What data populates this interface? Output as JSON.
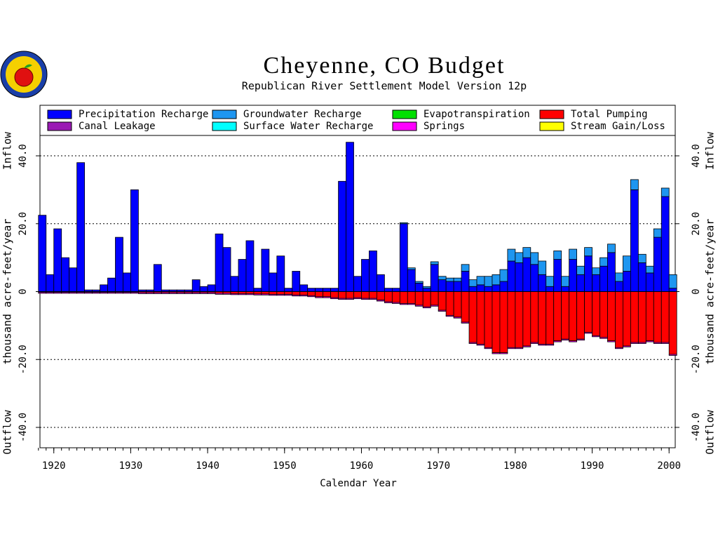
{
  "chart_data": {
    "type": "stacked-bar",
    "title": "Cheyenne, CO Budget",
    "subtitle": "Republican River Settlement Model Version 12p",
    "x_label": "Calendar Year",
    "y_axis_labels": [
      "Inflow",
      "thousand acre-feet/year",
      "Outflow"
    ],
    "x": [
      1918,
      1919,
      1920,
      1921,
      1922,
      1923,
      1924,
      1925,
      1926,
      1927,
      1928,
      1929,
      1930,
      1931,
      1932,
      1933,
      1934,
      1935,
      1936,
      1937,
      1938,
      1939,
      1940,
      1941,
      1942,
      1943,
      1944,
      1945,
      1946,
      1947,
      1948,
      1949,
      1950,
      1951,
      1952,
      1953,
      1954,
      1955,
      1956,
      1957,
      1958,
      1959,
      1960,
      1961,
      1962,
      1963,
      1964,
      1965,
      1966,
      1967,
      1968,
      1969,
      1970,
      1971,
      1972,
      1973,
      1974,
      1975,
      1976,
      1977,
      1978,
      1979,
      1980,
      1981,
      1982,
      1983,
      1984,
      1985,
      1986,
      1987,
      1988,
      1989,
      1990,
      1991,
      1992,
      1993,
      1994,
      1995,
      1996,
      1997,
      1998,
      1999,
      2000
    ],
    "xlim": [
      1918.2,
      2000.8
    ],
    "xticks": [
      1920,
      1930,
      1940,
      1950,
      1960,
      1970,
      1980,
      1990,
      2000
    ],
    "ylim": [
      -46,
      46
    ],
    "yticks": [
      {
        "value": -40,
        "label": "-40.0"
      },
      {
        "value": -20,
        "label": "-20.0"
      },
      0,
      {
        "value": 20,
        "label": "20.0"
      },
      {
        "value": 40,
        "label": "40.0"
      }
    ],
    "grid": true,
    "series": [
      {
        "name": "Precipitation Recharge",
        "color": "#0000ff",
        "values": [
          22.5,
          5,
          18.5,
          10,
          7,
          38,
          0.5,
          0.5,
          2,
          4,
          16,
          5.5,
          30,
          0.5,
          0.5,
          8,
          0.5,
          0.5,
          0.5,
          0.5,
          3.5,
          1.5,
          2,
          17,
          13,
          4.5,
          9.5,
          15,
          1,
          12.5,
          5.5,
          10.5,
          1,
          6,
          2,
          1,
          1,
          1,
          1,
          32.5,
          44,
          4.5,
          9.5,
          12,
          5,
          1,
          1,
          20,
          6.5,
          2.5,
          1,
          8,
          3.5,
          3,
          3,
          6,
          1.5,
          2,
          1.5,
          2,
          3,
          9,
          8.5,
          10,
          8,
          5,
          1.5,
          9.5,
          1.5,
          9.5,
          5,
          10.5,
          5,
          7.5,
          11.5,
          3,
          6,
          30,
          8.5,
          5.5,
          16,
          28,
          1
        ]
      },
      {
        "name": "Groundwater Recharge",
        "color": "#1e96f0",
        "values": [
          0,
          0,
          0,
          0,
          0,
          0,
          0,
          0,
          0,
          0,
          0,
          0,
          0,
          0,
          0,
          0,
          0,
          0,
          0,
          0,
          0,
          0,
          0,
          0,
          0,
          0,
          0,
          0,
          0,
          0,
          0,
          0,
          0,
          0,
          0,
          0,
          0,
          0,
          0,
          0,
          0,
          0,
          0,
          0,
          0,
          0,
          0,
          0.3,
          0.5,
          0.5,
          0.5,
          0.8,
          1,
          1,
          1,
          2,
          2,
          2.5,
          3,
          3,
          3.5,
          3.5,
          3,
          3,
          3.5,
          4,
          3,
          2.5,
          3,
          3,
          2.5,
          2.5,
          2,
          2.5,
          2.5,
          2.5,
          4.5,
          3,
          2.5,
          2,
          2.5,
          2.5,
          4
        ]
      },
      {
        "name": "Evapotranspiration",
        "color": "#00e000",
        "values": [
          0,
          0,
          0,
          0,
          0,
          0,
          0,
          0,
          0,
          0,
          0,
          0,
          0,
          0,
          0,
          0,
          0,
          0,
          0,
          0,
          0,
          0,
          0,
          0,
          0,
          0,
          0,
          0,
          0,
          0,
          0,
          0,
          0,
          0,
          0,
          0,
          0,
          0,
          0,
          0,
          0,
          0,
          0,
          0,
          0,
          0,
          0,
          0,
          0,
          0,
          0,
          0,
          0,
          0,
          0,
          0,
          0,
          0,
          0,
          0,
          0,
          0,
          0,
          0,
          0,
          0,
          0,
          0,
          0,
          0,
          0,
          0,
          0,
          0,
          0,
          0,
          0,
          0,
          0,
          0,
          0,
          0,
          0
        ]
      },
      {
        "name": "Total Pumping",
        "color": "#ff0000",
        "values": [
          -0.2,
          -0.2,
          -0.2,
          -0.2,
          -0.2,
          -0.2,
          -0.2,
          -0.2,
          -0.2,
          -0.2,
          -0.2,
          -0.2,
          -0.2,
          -0.3,
          -0.3,
          -0.3,
          -0.3,
          -0.3,
          -0.3,
          -0.3,
          -0.3,
          -0.3,
          -0.3,
          -0.5,
          -0.5,
          -0.6,
          -0.6,
          -0.6,
          -0.7,
          -0.7,
          -0.8,
          -0.8,
          -0.8,
          -1,
          -1,
          -1.2,
          -1.5,
          -1.5,
          -1.8,
          -2,
          -2,
          -1.8,
          -2,
          -2,
          -2.5,
          -3,
          -3.2,
          -3.5,
          -3.5,
          -4,
          -4.5,
          -4,
          -5.5,
          -7,
          -7.5,
          -9,
          -15,
          -15.5,
          -16.5,
          -18,
          -18,
          -16.5,
          -16.5,
          -16,
          -15,
          -15.5,
          -15.5,
          -14.5,
          -14,
          -14.5,
          -14,
          -12,
          -13,
          -13.5,
          -14.5,
          -16.5,
          -16,
          -15,
          -15,
          -14.5,
          -15,
          -15,
          -18.5
        ]
      },
      {
        "name": "Canal Leakage",
        "color": "#9a1ab4",
        "values": [
          0,
          0,
          0,
          0,
          0,
          0,
          0,
          0,
          0,
          0,
          0,
          0,
          0,
          0,
          0,
          0,
          0,
          0,
          0,
          0,
          0,
          0,
          0,
          0,
          0,
          0,
          0,
          0,
          0,
          0,
          0,
          0,
          0,
          0,
          0,
          0,
          0,
          0,
          0,
          0,
          0,
          0,
          0,
          0,
          0,
          0,
          0,
          0,
          0,
          0,
          0,
          0,
          0,
          0,
          0,
          0,
          0,
          0,
          0,
          0,
          0,
          0,
          0,
          0,
          0,
          0,
          0,
          0,
          0,
          0,
          0,
          0,
          0,
          0,
          0,
          0,
          0,
          0,
          0,
          0,
          0,
          0,
          0
        ]
      },
      {
        "name": "Surface Water Recharge",
        "color": "#00ffff",
        "values": [
          0,
          0,
          0,
          0,
          0,
          0,
          0,
          0,
          0,
          0,
          0,
          0,
          0,
          0,
          0,
          0,
          0,
          0,
          0,
          0,
          0,
          0,
          0,
          0,
          0,
          0,
          0,
          0,
          0,
          0,
          0,
          0,
          0,
          0,
          0,
          0,
          0,
          0,
          0,
          0,
          0,
          0,
          0,
          0,
          0,
          0,
          0,
          0,
          0,
          0,
          0,
          0,
          0,
          0,
          0,
          0,
          0,
          0,
          0,
          0,
          0,
          0,
          0,
          0,
          0,
          0,
          0,
          0,
          0,
          0,
          0,
          0,
          0,
          0,
          0,
          0,
          0,
          0,
          0,
          0,
          0,
          0,
          0
        ]
      },
      {
        "name": "Springs",
        "color": "#ff00ff",
        "values": [
          -0.3,
          -0.3,
          -0.3,
          -0.3,
          -0.3,
          -0.3,
          -0.3,
          -0.3,
          -0.3,
          -0.3,
          -0.3,
          -0.3,
          -0.3,
          -0.3,
          -0.3,
          -0.3,
          -0.3,
          -0.3,
          -0.3,
          -0.3,
          -0.3,
          -0.3,
          -0.3,
          -0.3,
          -0.3,
          -0.3,
          -0.3,
          -0.3,
          -0.3,
          -0.3,
          -0.3,
          -0.3,
          -0.3,
          -0.3,
          -0.3,
          -0.3,
          -0.3,
          -0.3,
          -0.3,
          -0.3,
          -0.3,
          -0.3,
          -0.3,
          -0.3,
          -0.3,
          -0.3,
          -0.3,
          -0.3,
          -0.3,
          -0.3,
          -0.3,
          -0.3,
          -0.3,
          -0.3,
          -0.3,
          -0.3,
          -0.3,
          -0.3,
          -0.3,
          -0.3,
          -0.3,
          -0.3,
          -0.3,
          -0.3,
          -0.3,
          -0.3,
          -0.3,
          -0.3,
          -0.3,
          -0.3,
          -0.3,
          -0.3,
          -0.3,
          -0.3,
          -0.3,
          -0.3,
          -0.3,
          -0.3,
          -0.3,
          -0.3,
          -0.3,
          -0.3,
          -0.3
        ]
      },
      {
        "name": "Stream Gain/Loss",
        "color": "#ffff00",
        "values": [
          0,
          0,
          0,
          0,
          0,
          0,
          0,
          0,
          0,
          0,
          0,
          0,
          0,
          0,
          0,
          0,
          0,
          0,
          0,
          0,
          0,
          0,
          0,
          0,
          0,
          0,
          0,
          0,
          0,
          0,
          0,
          0,
          0,
          0,
          0,
          0,
          0,
          0,
          0,
          0,
          0,
          0,
          0,
          0,
          0,
          0,
          0,
          0,
          0,
          0,
          0,
          0,
          0,
          0,
          0,
          0,
          0,
          0,
          0,
          0,
          0,
          0,
          0,
          0,
          0,
          0,
          0,
          0,
          0,
          0,
          0,
          0,
          0,
          0,
          0,
          0,
          0,
          0,
          0,
          0,
          0,
          0,
          0
        ]
      }
    ]
  }
}
